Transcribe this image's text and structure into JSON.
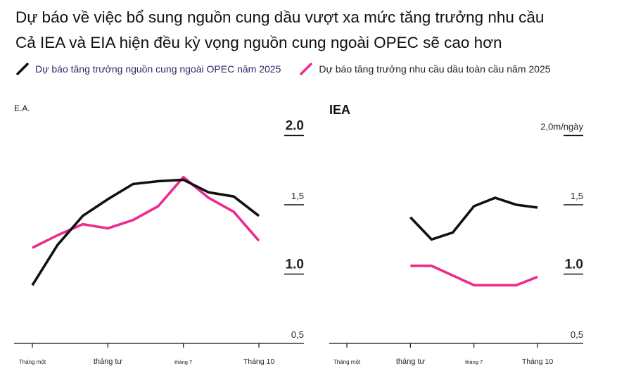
{
  "header": {
    "title": "Dự báo về việc bổ sung nguồn cung dầu vượt xa mức tăng trưởng nhu cầu",
    "subtitle": "Cả IEA và EIA hiện đều kỳ vọng nguồn cung ngoài OPEC sẽ cao hơn"
  },
  "legend": [
    {
      "label": "Dự báo tăng trưởng nguồn cung ngoài OPEC năm 2025",
      "color": "#111111"
    },
    {
      "label": "Dự báo tăng trưởng nhu cầu dầu toàn cầu năm 2025",
      "color": "#ee2a8c"
    }
  ],
  "chart_data": [
    {
      "type": "line",
      "title": "E.A.",
      "ylim": [
        0.5,
        2.0
      ],
      "y_ticks": [
        {
          "value": 2.0,
          "label": "2.0"
        },
        {
          "value": 1.5,
          "label": "1,5"
        },
        {
          "value": 1.0,
          "label": "1.0"
        },
        {
          "value": 0.5,
          "label": "0,5"
        }
      ],
      "x_ticks": [
        "Tháng một",
        "tháng tư",
        "tháng 7",
        "Tháng 10"
      ],
      "x_tick_positions": [
        0,
        3,
        6,
        9
      ],
      "series": [
        {
          "name": "Dự báo tăng trưởng nguồn cung ngoài OPEC năm 2025",
          "color": "#111111",
          "x": [
            0,
            1,
            2,
            3,
            4,
            5,
            6,
            7,
            8,
            9
          ],
          "values": [
            0.92,
            1.21,
            1.42,
            1.54,
            1.65,
            1.67,
            1.68,
            1.59,
            1.56,
            1.42
          ]
        },
        {
          "name": "Dự báo tăng trưởng nhu cầu dầu toàn cầu năm 2025",
          "color": "#ee2a8c",
          "x": [
            0,
            1,
            2,
            3,
            4,
            5,
            6,
            7,
            8,
            9
          ],
          "values": [
            1.19,
            1.28,
            1.36,
            1.33,
            1.39,
            1.49,
            1.7,
            1.55,
            1.45,
            1.24
          ]
        }
      ]
    },
    {
      "type": "line",
      "title": "IEA",
      "ylim": [
        0.5,
        2.0
      ],
      "y_ticks": [
        {
          "value": 2.0,
          "label": "2,0m/ngày"
        },
        {
          "value": 1.5,
          "label": "1,5"
        },
        {
          "value": 1.0,
          "label": "1.0"
        },
        {
          "value": 0.5,
          "label": "0,5"
        }
      ],
      "x_ticks": [
        "Tháng một",
        "tháng tư",
        "tháng 7",
        "Tháng 10"
      ],
      "x_tick_positions": [
        0,
        3,
        6,
        9
      ],
      "series": [
        {
          "name": "Dự báo tăng trưởng nguồn cung ngoài OPEC năm 2025",
          "color": "#111111",
          "x": [
            3,
            4,
            5,
            6,
            7,
            8,
            9
          ],
          "values": [
            1.41,
            1.25,
            1.3,
            1.49,
            1.55,
            1.5,
            1.48
          ]
        },
        {
          "name": "Dự báo tăng trưởng nhu cầu dầu toàn cầu năm 2025",
          "color": "#ee2a8c",
          "x": [
            3,
            4,
            5,
            6,
            7,
            8,
            9
          ],
          "values": [
            1.06,
            1.06,
            0.99,
            0.92,
            0.92,
            0.92,
            0.98
          ]
        }
      ]
    }
  ]
}
